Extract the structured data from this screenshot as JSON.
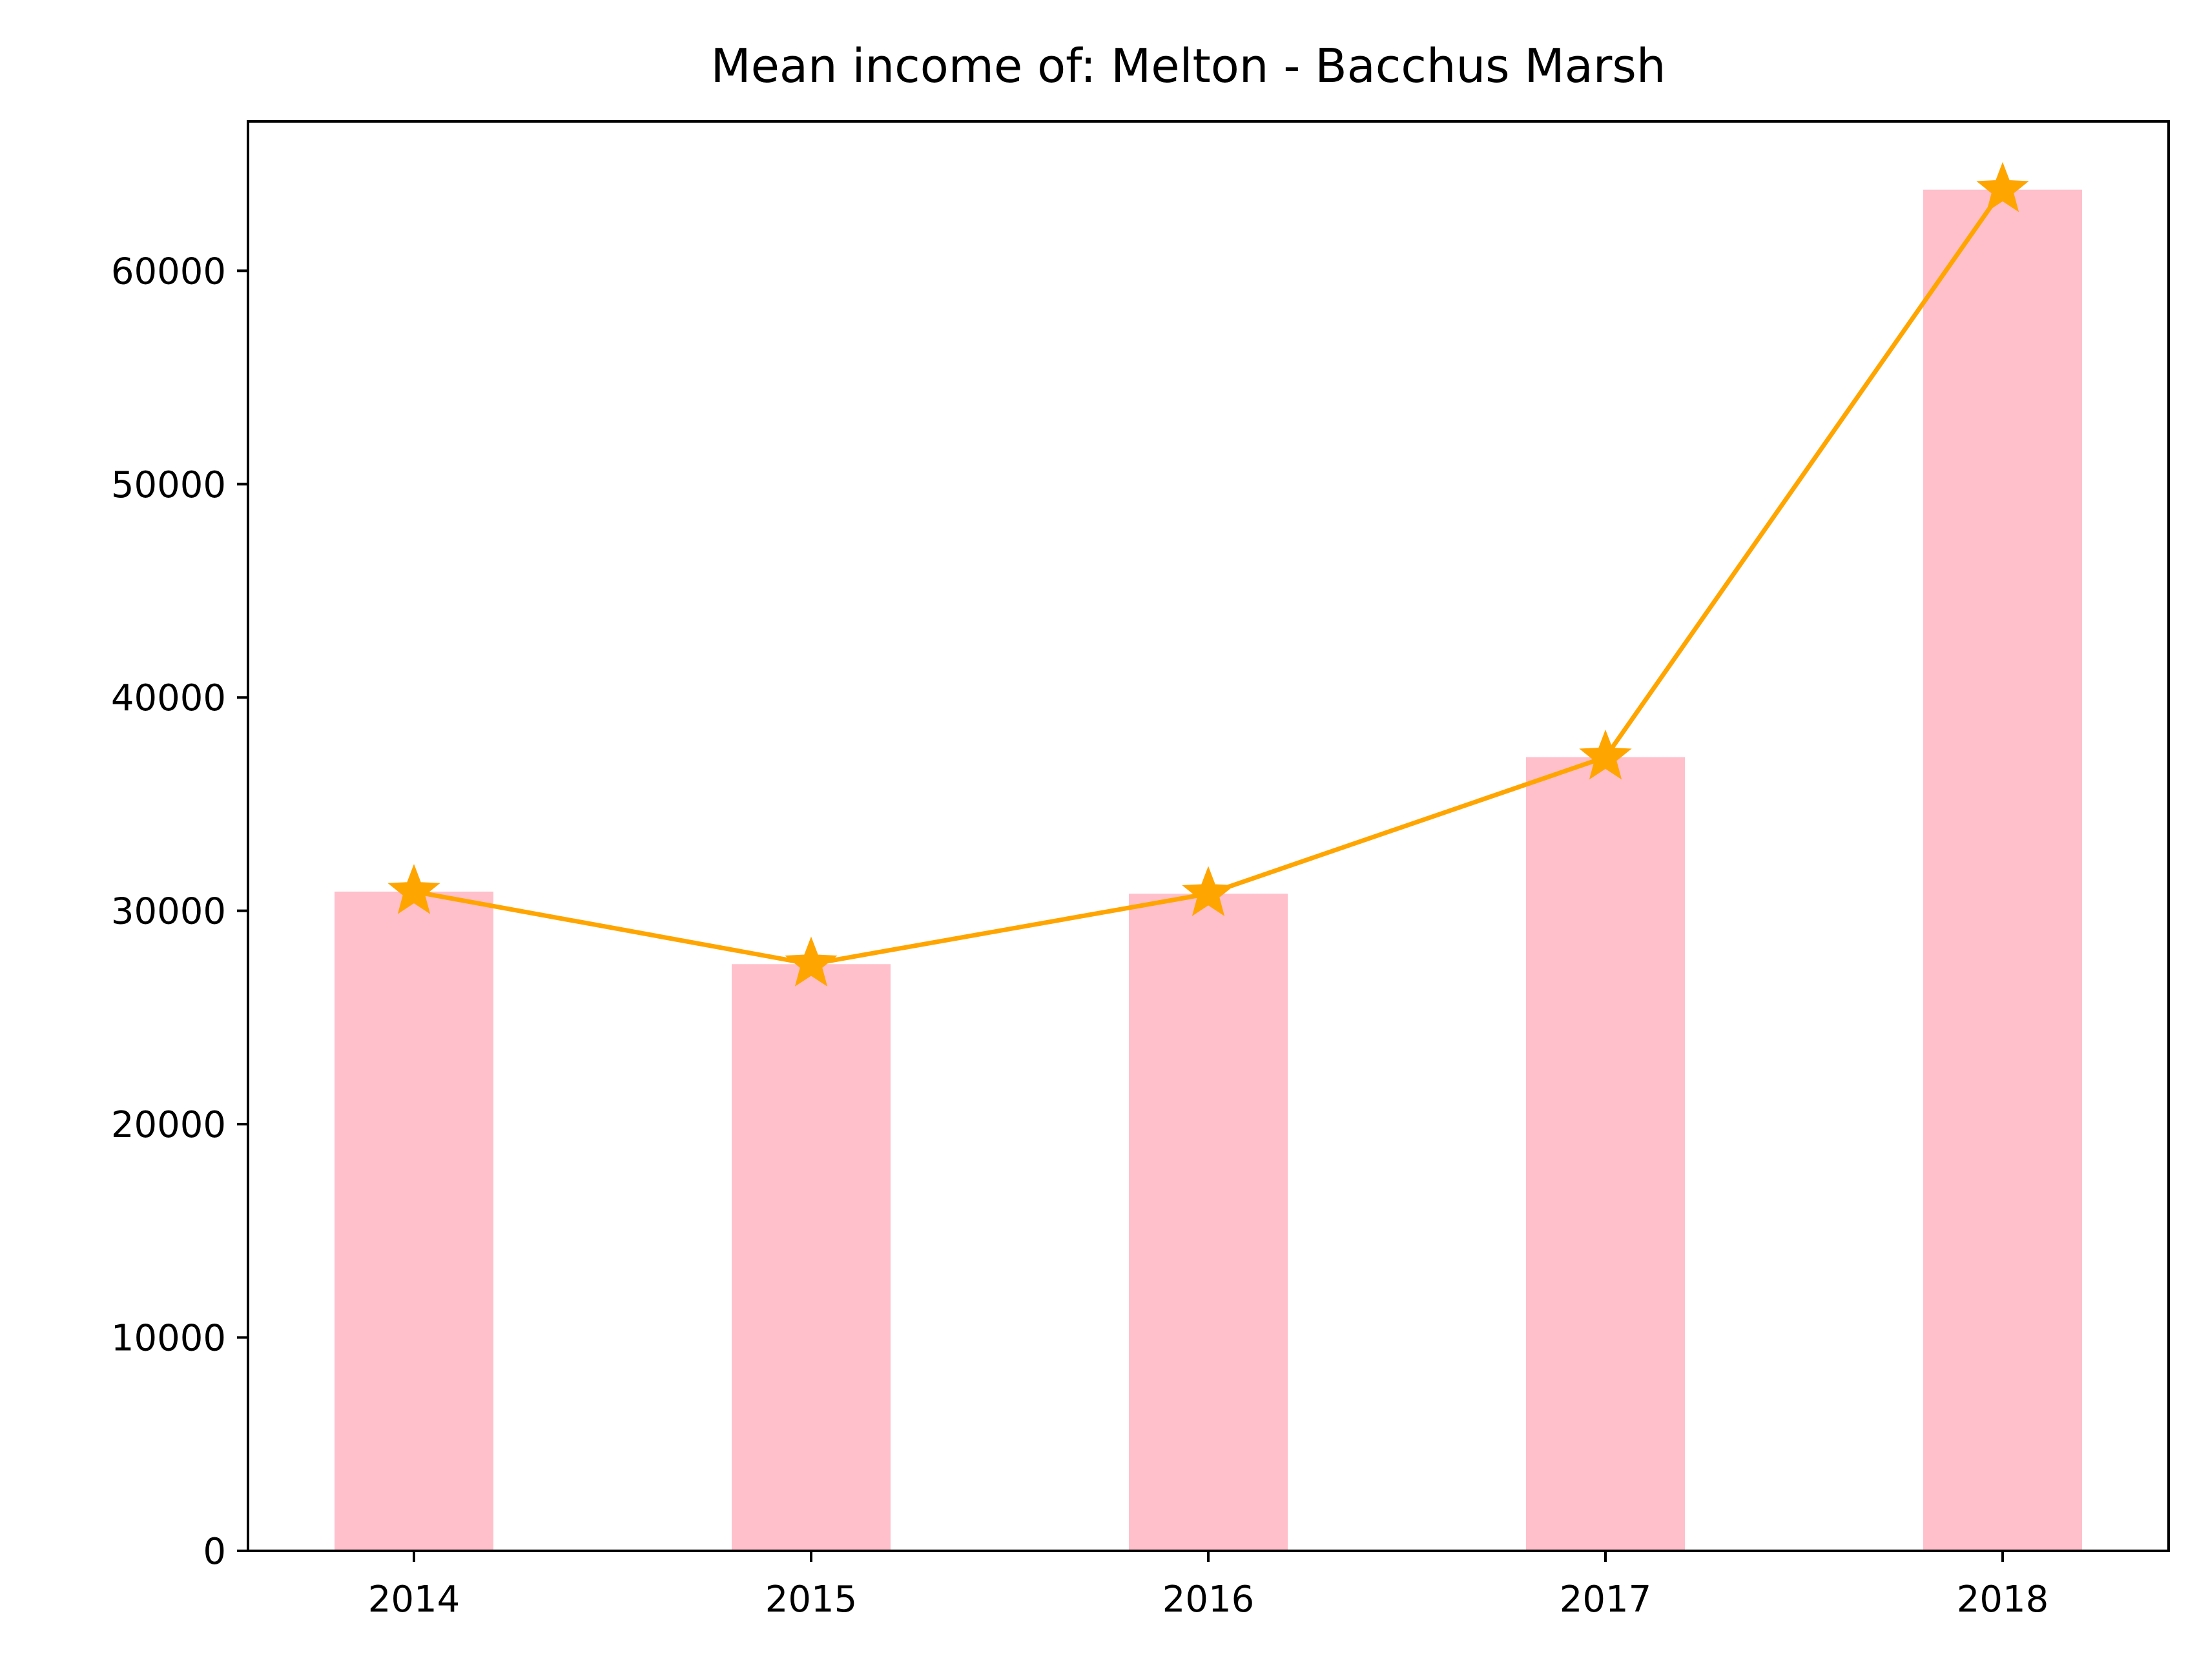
{
  "chart_data": {
    "type": "bar",
    "title": "Mean income of: Melton - Bacchus Marsh",
    "xlabel": "",
    "ylabel": "",
    "categories": [
      "2014",
      "2015",
      "2016",
      "2017",
      "2018"
    ],
    "series": [
      {
        "kind": "bar",
        "values": [
          30900,
          27500,
          30800,
          37200,
          63800
        ]
      },
      {
        "kind": "line",
        "marker": "star",
        "values": [
          30900,
          27500,
          30800,
          37200,
          63800
        ]
      }
    ],
    "ylim": [
      0,
      67000
    ],
    "yticks": [
      0,
      10000,
      20000,
      30000,
      40000,
      50000,
      60000
    ],
    "ytick_labels": [
      "0",
      "10000",
      "20000",
      "30000",
      "40000",
      "50000",
      "60000"
    ],
    "grid": false,
    "legend": "none",
    "colors": {
      "bar": "#ffc0cb",
      "line": "#ffa500",
      "axis": "#000000"
    }
  }
}
